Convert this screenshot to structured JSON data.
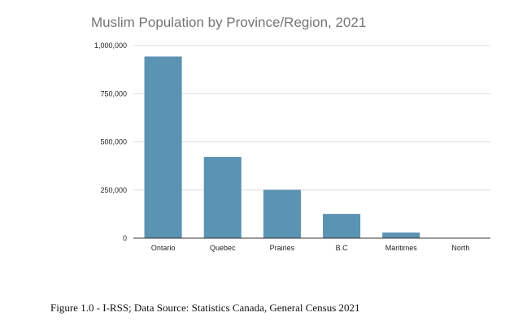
{
  "chart_data": {
    "type": "bar",
    "title": "Muslim Population by Province/Region, 2021",
    "xlabel": "",
    "ylabel": "",
    "categories": [
      "Ontario",
      "Quebec",
      "Prairies",
      "B.C",
      "Maritimes",
      "North"
    ],
    "values": [
      942990,
      421710,
      250915,
      125915,
      29025,
      1000
    ],
    "ylim": [
      0,
      1000000
    ],
    "yticks": [
      {
        "value": 0,
        "label": "0"
      },
      {
        "value": 250000,
        "label": "250,000"
      },
      {
        "value": 500000,
        "label": "500,000"
      },
      {
        "value": 750000,
        "label": "750,000"
      },
      {
        "value": 1000000,
        "label": "1,000,000"
      }
    ],
    "grid": true,
    "legend": "none",
    "bar_color": "#5b93b2"
  },
  "caption": "Figure 1.0 - I-RSS; Data Source: Statistics Canada, General Census 2021"
}
